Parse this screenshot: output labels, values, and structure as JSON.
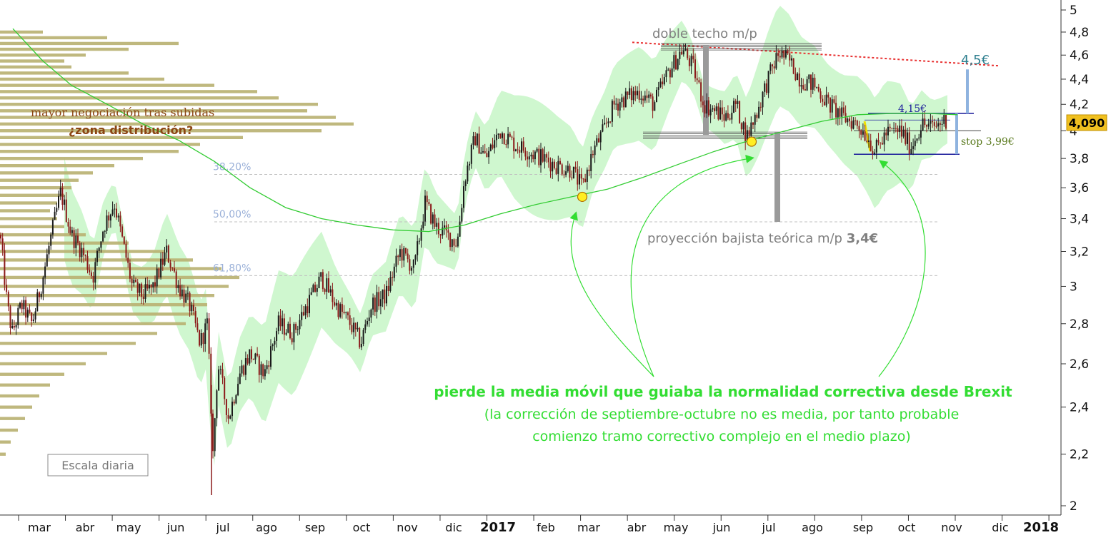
{
  "chart_data": {
    "type": "candlestick",
    "scale": "log",
    "ylim": [
      2,
      5
    ],
    "y_ticks": [
      "2",
      "2,2",
      "2,4",
      "2,6",
      "2,8",
      "3",
      "3,2",
      "3,4",
      "3,6",
      "3,8",
      "4",
      "4,2",
      "4,4",
      "4,6",
      "4,8",
      "5"
    ],
    "x_ticks": [
      "mar",
      "abr",
      "may",
      "jun",
      "jul",
      "ago",
      "sep",
      "oct",
      "nov",
      "dic",
      "2017",
      "feb",
      "mar",
      "abr",
      "may",
      "jun",
      "jul",
      "ago",
      "sep",
      "oct",
      "nov",
      "dic",
      "2018"
    ],
    "price_path": [
      [
        0,
        3.3
      ],
      [
        10,
        2.9
      ],
      [
        17,
        2.75
      ],
      [
        30,
        2.9
      ],
      [
        45,
        2.8
      ],
      [
        60,
        3.05
      ],
      [
        72,
        3.3
      ],
      [
        85,
        3.57
      ],
      [
        100,
        3.3
      ],
      [
        115,
        3.2
      ],
      [
        130,
        3.05
      ],
      [
        145,
        3.35
      ],
      [
        160,
        3.5
      ],
      [
        172,
        3.25
      ],
      [
        185,
        3.0
      ],
      [
        200,
        2.95
      ],
      [
        215,
        3.0
      ],
      [
        233,
        3.2
      ],
      [
        250,
        3.0
      ],
      [
        265,
        2.9
      ],
      [
        280,
        2.7
      ],
      [
        290,
        2.8
      ],
      [
        298,
        2.2
      ],
      [
        305,
        2.6
      ],
      [
        320,
        2.35
      ],
      [
        335,
        2.55
      ],
      [
        350,
        2.65
      ],
      [
        370,
        2.55
      ],
      [
        390,
        2.8
      ],
      [
        410,
        2.75
      ],
      [
        430,
        2.9
      ],
      [
        450,
        3.05
      ],
      [
        470,
        2.9
      ],
      [
        490,
        2.8
      ],
      [
        505,
        2.7
      ],
      [
        520,
        2.9
      ],
      [
        540,
        2.95
      ],
      [
        560,
        3.2
      ],
      [
        580,
        3.1
      ],
      [
        595,
        3.5
      ],
      [
        610,
        3.35
      ],
      [
        625,
        3.3
      ],
      [
        640,
        3.25
      ],
      [
        650,
        3.65
      ],
      [
        665,
        3.95
      ],
      [
        680,
        3.8
      ],
      [
        700,
        4.0
      ],
      [
        720,
        3.9
      ],
      [
        740,
        3.85
      ],
      [
        760,
        3.8
      ],
      [
        780,
        3.75
      ],
      [
        800,
        3.72
      ],
      [
        815,
        3.6
      ],
      [
        830,
        3.85
      ],
      [
        845,
        4.0
      ],
      [
        860,
        4.2
      ],
      [
        875,
        4.25
      ],
      [
        895,
        4.3
      ],
      [
        915,
        4.2
      ],
      [
        935,
        4.45
      ],
      [
        955,
        4.65
      ],
      [
        970,
        4.5
      ],
      [
        985,
        4.2
      ],
      [
        1000,
        4.15
      ],
      [
        1015,
        4.1
      ],
      [
        1030,
        4.2
      ],
      [
        1045,
        3.95
      ],
      [
        1060,
        4.15
      ],
      [
        1075,
        4.4
      ],
      [
        1090,
        4.62
      ],
      [
        1105,
        4.55
      ],
      [
        1120,
        4.4
      ],
      [
        1140,
        4.35
      ],
      [
        1160,
        4.2
      ],
      [
        1180,
        4.1
      ],
      [
        1200,
        4.05
      ],
      [
        1215,
        3.95
      ],
      [
        1225,
        3.85
      ],
      [
        1240,
        3.98
      ],
      [
        1260,
        4.0
      ],
      [
        1275,
        3.88
      ],
      [
        1290,
        4.05
      ],
      [
        1305,
        4.02
      ],
      [
        1325,
        4.09
      ]
    ],
    "sma_path": [
      [
        18,
        4.83
      ],
      [
        60,
        4.55
      ],
      [
        100,
        4.35
      ],
      [
        150,
        4.2
      ],
      [
        200,
        4.05
      ],
      [
        250,
        3.93
      ],
      [
        300,
        3.78
      ],
      [
        350,
        3.6
      ],
      [
        400,
        3.47
      ],
      [
        450,
        3.4
      ],
      [
        500,
        3.36
      ],
      [
        550,
        3.33
      ],
      [
        600,
        3.32
      ],
      [
        650,
        3.36
      ],
      [
        700,
        3.43
      ],
      [
        750,
        3.49
      ],
      [
        800,
        3.54
      ],
      [
        850,
        3.59
      ],
      [
        900,
        3.67
      ],
      [
        950,
        3.76
      ],
      [
        1000,
        3.85
      ],
      [
        1050,
        3.93
      ],
      [
        1100,
        4.0
      ],
      [
        1150,
        4.07
      ],
      [
        1200,
        4.12
      ],
      [
        1250,
        4.13
      ],
      [
        1300,
        4.13
      ],
      [
        1340,
        4.12
      ]
    ],
    "volume_profile": [
      [
        4.8,
        60
      ],
      [
        4.75,
        150
      ],
      [
        4.7,
        250
      ],
      [
        4.65,
        180
      ],
      [
        4.6,
        120
      ],
      [
        4.55,
        90
      ],
      [
        4.5,
        100
      ],
      [
        4.45,
        180
      ],
      [
        4.4,
        230
      ],
      [
        4.35,
        300
      ],
      [
        4.3,
        360
      ],
      [
        4.25,
        390
      ],
      [
        4.2,
        445
      ],
      [
        4.15,
        430
      ],
      [
        4.1,
        470
      ],
      [
        4.05,
        495
      ],
      [
        4.0,
        450
      ],
      [
        3.95,
        340
      ],
      [
        3.9,
        280
      ],
      [
        3.85,
        250
      ],
      [
        3.8,
        200
      ],
      [
        3.75,
        160
      ],
      [
        3.7,
        130
      ],
      [
        3.65,
        110
      ],
      [
        3.6,
        100
      ],
      [
        3.55,
        90
      ],
      [
        3.5,
        80
      ],
      [
        3.45,
        70
      ],
      [
        3.4,
        80
      ],
      [
        3.35,
        90
      ],
      [
        3.3,
        120
      ],
      [
        3.25,
        180
      ],
      [
        3.2,
        230
      ],
      [
        3.15,
        270
      ],
      [
        3.1,
        310
      ],
      [
        3.05,
        335
      ],
      [
        3.0,
        320
      ],
      [
        2.95,
        300
      ],
      [
        2.9,
        290
      ],
      [
        2.85,
        275
      ],
      [
        2.8,
        260
      ],
      [
        2.75,
        220
      ],
      [
        2.7,
        190
      ],
      [
        2.65,
        150
      ],
      [
        2.6,
        120
      ],
      [
        2.55,
        90
      ],
      [
        2.5,
        70
      ],
      [
        2.45,
        55
      ],
      [
        2.4,
        45
      ],
      [
        2.35,
        35
      ],
      [
        2.3,
        25
      ],
      [
        2.25,
        15
      ],
      [
        2.2,
        8
      ]
    ],
    "current_price": "4,090",
    "fib_levels": [
      {
        "label": "38,20%",
        "y": 3.69
      },
      {
        "label": "50,00%",
        "y": 3.38
      },
      {
        "label": "61,80%",
        "y": 3.06
      }
    ],
    "colors": {
      "band": "#a8f0a8",
      "band_light": "#c8f7c8",
      "sma": "#33cc33",
      "profile": "#b8b070",
      "up_candle": "#1a1a1a",
      "down_candle": "#8b1a1a",
      "resistance": "#e83030",
      "price_badge": "#f0c020",
      "fib_text": "#9ab0d8",
      "target_bar": "#8fb3df",
      "target_text": "#2e7f8f",
      "stop_text": "#5a7a1e",
      "green_text": "#33dd33",
      "distribution_text": "#8b4513"
    }
  },
  "annotations": {
    "double_top": "doble techo m/p",
    "projection_prefix": "proyección bajista teórica m/p ",
    "projection_value": "3,4€",
    "distribution_line1": "mayor negociación tras subidas",
    "distribution_line2": "¿zona distribución?",
    "target_45": "4,5€",
    "target_415": "4,15€",
    "stop": "stop 3,99€",
    "scale_label": "Escala diaria",
    "main_bold": "pierde la media móvil que guiaba la normalidad correctiva desde Brexit",
    "main_line2": "(la corrección de septiembre-octubre no es media, por tanto probable",
    "main_line3": "comienzo tramo correctivo complejo en el medio plazo)"
  }
}
